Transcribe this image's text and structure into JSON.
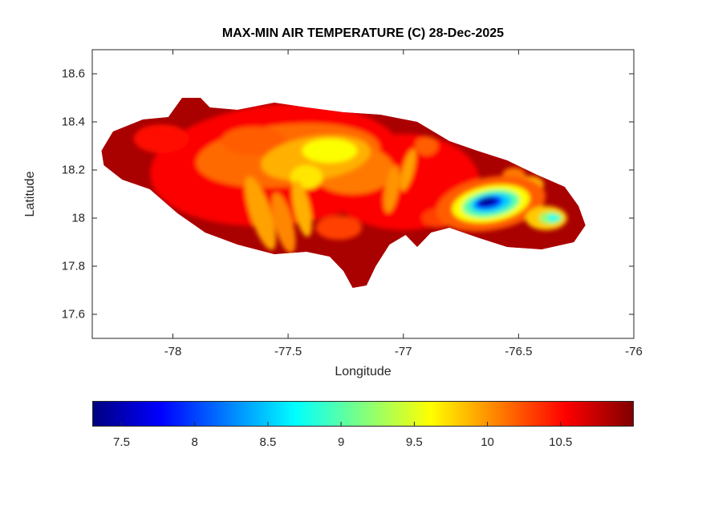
{
  "chart_data": {
    "type": "heatmap",
    "title": "MAX-MIN AIR TEMPERATURE (C) 28-Dec-2025",
    "xlabel": "Longitude",
    "ylabel": "Latitude",
    "region": "Jamaica",
    "xlim": [
      -78.35,
      -76.0
    ],
    "ylim": [
      17.5,
      18.7
    ],
    "xticks": [
      -78,
      -77.5,
      -77,
      -76.5,
      -76
    ],
    "yticks": [
      17.6,
      17.8,
      18,
      18.2,
      18.4,
      18.6
    ],
    "colormap": "jet",
    "clim": [
      7.3,
      11.0
    ],
    "colorbar_ticks": [
      7.5,
      8,
      8.5,
      9,
      9.5,
      10,
      10.5
    ],
    "description": "Filled contour map of daily max-min air temperature (C) over Jamaica. Most of the island is dark red (10.5-11 C); a broad orange/yellow band (9.5-10.2 C) covers the west-central interior with yellow streaks toward the south coast; the coldest spot (~7.3-8 C, blue) sits over the Blue Mountains in the east, ringed by cyan, green and yellow, with a smaller cool spot (~8.7-9.8 C) farther east.",
    "base_value": 10.85,
    "outline": [
      [
        -78.3,
        18.22
      ],
      [
        -78.31,
        18.28
      ],
      [
        -78.26,
        18.36
      ],
      [
        -78.13,
        18.41
      ],
      [
        -78.02,
        18.42
      ],
      [
        -77.96,
        18.5
      ],
      [
        -77.88,
        18.5
      ],
      [
        -77.84,
        18.46
      ],
      [
        -77.72,
        18.45
      ],
      [
        -77.56,
        18.48
      ],
      [
        -77.42,
        18.46
      ],
      [
        -77.26,
        18.44
      ],
      [
        -77.1,
        18.43
      ],
      [
        -76.94,
        18.4
      ],
      [
        -76.8,
        18.32
      ],
      [
        -76.68,
        18.28
      ],
      [
        -76.55,
        18.24
      ],
      [
        -76.42,
        18.18
      ],
      [
        -76.3,
        18.13
      ],
      [
        -76.24,
        18.05
      ],
      [
        -76.21,
        17.97
      ],
      [
        -76.26,
        17.9
      ],
      [
        -76.4,
        17.87
      ],
      [
        -76.55,
        17.88
      ],
      [
        -76.68,
        17.92
      ],
      [
        -76.8,
        17.96
      ],
      [
        -76.88,
        17.94
      ],
      [
        -76.94,
        17.88
      ],
      [
        -76.99,
        17.93
      ],
      [
        -77.06,
        17.89
      ],
      [
        -77.12,
        17.8
      ],
      [
        -77.16,
        17.72
      ],
      [
        -77.22,
        17.71
      ],
      [
        -77.26,
        17.78
      ],
      [
        -77.32,
        17.84
      ],
      [
        -77.42,
        17.86
      ],
      [
        -77.56,
        17.85
      ],
      [
        -77.72,
        17.89
      ],
      [
        -77.86,
        17.94
      ],
      [
        -77.98,
        18.02
      ],
      [
        -78.1,
        18.12
      ],
      [
        -78.22,
        18.16
      ]
    ],
    "blobs": [
      {
        "lon": -77.55,
        "lat": 18.22,
        "rx": 0.55,
        "ry": 0.25,
        "rot": -5,
        "value": 10.55
      },
      {
        "lon": -77.0,
        "lat": 18.15,
        "rx": 0.33,
        "ry": 0.2,
        "rot": 0,
        "value": 10.55
      },
      {
        "lon": -78.05,
        "lat": 18.33,
        "rx": 0.12,
        "ry": 0.06,
        "rot": 0,
        "value": 10.5
      },
      {
        "lon": -77.5,
        "lat": 18.26,
        "rx": 0.4,
        "ry": 0.13,
        "rot": -5,
        "value": 10.15
      },
      {
        "lon": -77.22,
        "lat": 18.2,
        "rx": 0.18,
        "ry": 0.1,
        "rot": 0,
        "value": 10.1
      },
      {
        "lon": -77.65,
        "lat": 18.32,
        "rx": 0.14,
        "ry": 0.06,
        "rot": 0,
        "value": 10.2
      },
      {
        "lon": -77.38,
        "lat": 18.25,
        "rx": 0.24,
        "ry": 0.09,
        "rot": -8,
        "value": 9.9
      },
      {
        "lon": -77.32,
        "lat": 18.28,
        "rx": 0.12,
        "ry": 0.05,
        "rot": 0,
        "value": 9.6
      },
      {
        "lon": -77.42,
        "lat": 18.17,
        "rx": 0.07,
        "ry": 0.05,
        "rot": 0,
        "value": 9.7
      },
      {
        "lon": -77.62,
        "lat": 18.02,
        "rx": 0.045,
        "ry": 0.16,
        "rot": -18,
        "value": 9.95
      },
      {
        "lon": -77.52,
        "lat": 17.98,
        "rx": 0.04,
        "ry": 0.13,
        "rot": -15,
        "value": 10.05
      },
      {
        "lon": -77.44,
        "lat": 18.04,
        "rx": 0.035,
        "ry": 0.12,
        "rot": -12,
        "value": 9.9
      },
      {
        "lon": -77.28,
        "lat": 17.96,
        "rx": 0.1,
        "ry": 0.05,
        "rot": 0,
        "value": 10.3
      },
      {
        "lon": -77.05,
        "lat": 18.12,
        "rx": 0.03,
        "ry": 0.1,
        "rot": 10,
        "value": 10.0
      },
      {
        "lon": -76.98,
        "lat": 18.2,
        "rx": 0.025,
        "ry": 0.09,
        "rot": 15,
        "value": 9.95
      },
      {
        "lon": -76.9,
        "lat": 18.3,
        "rx": 0.05,
        "ry": 0.04,
        "rot": 0,
        "value": 10.2
      },
      {
        "lon": -76.85,
        "lat": 18.0,
        "rx": 0.07,
        "ry": 0.04,
        "rot": 0,
        "value": 10.3
      },
      {
        "lon": -76.52,
        "lat": 18.18,
        "rx": 0.05,
        "ry": 0.03,
        "rot": 0,
        "value": 10.1
      },
      {
        "lon": -76.45,
        "lat": 18.14,
        "rx": 0.06,
        "ry": 0.035,
        "rot": 0,
        "value": 9.9
      },
      {
        "lon": -76.62,
        "lat": 18.06,
        "rx": 0.24,
        "ry": 0.11,
        "rot": -10,
        "value": 10.2
      },
      {
        "lon": -76.62,
        "lat": 18.06,
        "rx": 0.17,
        "ry": 0.075,
        "rot": -10,
        "value": 9.6
      },
      {
        "lon": -76.62,
        "lat": 18.06,
        "rx": 0.125,
        "ry": 0.055,
        "rot": -10,
        "value": 9.0
      },
      {
        "lon": -76.62,
        "lat": 18.062,
        "rx": 0.09,
        "ry": 0.038,
        "rot": -10,
        "value": 8.5
      },
      {
        "lon": -76.63,
        "lat": 18.065,
        "rx": 0.06,
        "ry": 0.026,
        "rot": -10,
        "value": 7.9
      },
      {
        "lon": -76.635,
        "lat": 18.068,
        "rx": 0.038,
        "ry": 0.016,
        "rot": -10,
        "value": 7.35
      },
      {
        "lon": -76.38,
        "lat": 18.0,
        "rx": 0.09,
        "ry": 0.05,
        "rot": 0,
        "value": 9.8
      },
      {
        "lon": -76.36,
        "lat": 18.0,
        "rx": 0.05,
        "ry": 0.025,
        "rot": 0,
        "value": 9.2
      },
      {
        "lon": -76.35,
        "lat": 18.0,
        "rx": 0.025,
        "ry": 0.013,
        "rot": 0,
        "value": 8.7
      }
    ]
  }
}
